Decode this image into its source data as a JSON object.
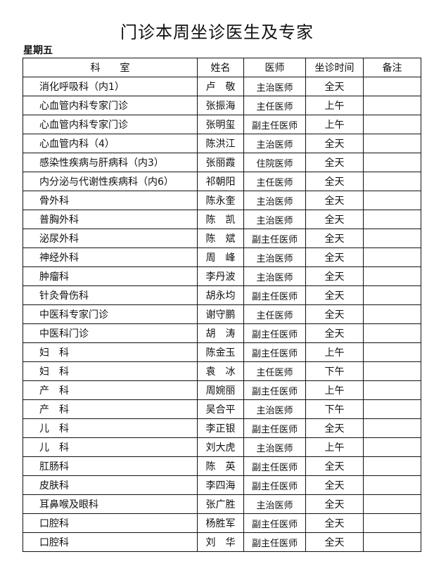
{
  "title": "门诊本周坐诊医生及专家",
  "day": "星期五",
  "headers": [
    "科　　室",
    "姓名",
    "医师",
    "坐诊时间",
    "备注"
  ],
  "rows": [
    {
      "dept": "消化呼吸科（内1）",
      "name": "卢　敬",
      "title": "主治医师",
      "time": "全天",
      "note": ""
    },
    {
      "dept": "心血管内科专家门诊",
      "name": "张振海",
      "title": "主任医师",
      "time": "上午",
      "note": ""
    },
    {
      "dept": "心血管内科专家门诊",
      "name": "张明玺",
      "title": "副主任医师",
      "time": "上午",
      "note": ""
    },
    {
      "dept": "心血管内科（4）",
      "name": "陈洪江",
      "title": "主治医师",
      "time": "全天",
      "note": ""
    },
    {
      "dept": "感染性疾病与肝病科（内3）",
      "name": "张丽霞",
      "title": "住院医师",
      "time": "全天",
      "note": ""
    },
    {
      "dept": "内分泌与代谢性疾病科（内6）",
      "name": "祁朝阳",
      "title": "主任医师",
      "time": "全天",
      "note": ""
    },
    {
      "dept": "骨外科",
      "name": "陈永奎",
      "title": "主治医师",
      "time": "全天",
      "note": ""
    },
    {
      "dept": "普胸外科",
      "name": "陈　凯",
      "title": "主治医师",
      "time": "全天",
      "note": ""
    },
    {
      "dept": "泌尿外科",
      "name": "陈　斌",
      "title": "副主任医师",
      "time": "全天",
      "note": ""
    },
    {
      "dept": "神经外科",
      "name": "周　峰",
      "title": "主治医师",
      "time": "全天",
      "note": ""
    },
    {
      "dept": "肿瘤科",
      "name": "李丹波",
      "title": "主治医师",
      "time": "全天",
      "note": ""
    },
    {
      "dept": "针灸骨伤科",
      "name": "胡永均",
      "title": "副主任医师",
      "time": "全天",
      "note": ""
    },
    {
      "dept": "中医科专家门诊",
      "name": "谢守鹏",
      "title": "主任医师",
      "time": "全天",
      "note": ""
    },
    {
      "dept": "中医科门诊",
      "name": "胡　涛",
      "title": "副主任医师",
      "time": "全天",
      "note": ""
    },
    {
      "dept": "妇　科",
      "name": "陈金玉",
      "title": "副主任医师",
      "time": "上午",
      "note": ""
    },
    {
      "dept": "妇　科",
      "name": "袁　冰",
      "title": "主任医师",
      "time": "下午",
      "note": ""
    },
    {
      "dept": "产　科",
      "name": "周婉丽",
      "title": "副主任医师",
      "time": "上午",
      "note": ""
    },
    {
      "dept": "产　科",
      "name": "吴合平",
      "title": "主治医师",
      "time": "下午",
      "note": ""
    },
    {
      "dept": "儿　科",
      "name": "李正银",
      "title": "副主任医师",
      "time": "全天",
      "note": ""
    },
    {
      "dept": "儿　科",
      "name": "刘大虎",
      "title": "主治医师",
      "time": "上午",
      "note": ""
    },
    {
      "dept": "肛肠科",
      "name": "陈　英",
      "title": "副主任医师",
      "time": "全天",
      "note": ""
    },
    {
      "dept": "皮肤科",
      "name": "李四海",
      "title": "副主任医师",
      "time": "全天",
      "note": ""
    },
    {
      "dept": "耳鼻喉及眼科",
      "name": "张广胜",
      "title": "主治医师",
      "time": "全天",
      "note": ""
    },
    {
      "dept": "口腔科",
      "name": "杨胜军",
      "title": "副主任医师",
      "time": "全天",
      "note": ""
    },
    {
      "dept": "口腔科",
      "name": "刘　华",
      "title": "副主任医师",
      "time": "全天",
      "note": ""
    }
  ]
}
